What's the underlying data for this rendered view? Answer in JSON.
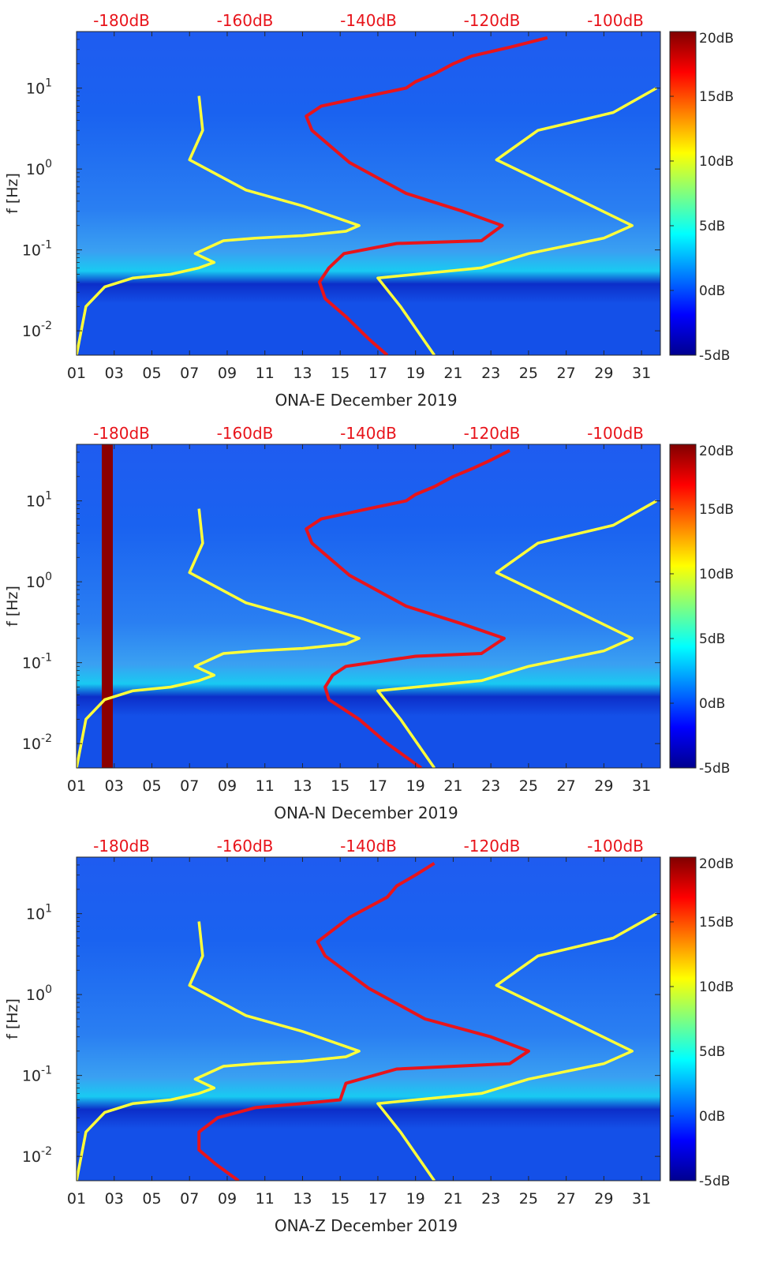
{
  "chart_data": [
    {
      "type": "heatmap",
      "title": "",
      "xlabel": "ONA-E December 2019",
      "ylabel": "f [Hz]",
      "x_ticks": [
        "01",
        "03",
        "05",
        "07",
        "09",
        "11",
        "13",
        "15",
        "17",
        "19",
        "21",
        "23",
        "25",
        "27",
        "29",
        "31"
      ],
      "y_ticks": [
        "10^-2",
        "10^-1",
        "10^0",
        "10^1"
      ],
      "xlim_days": [
        1,
        32
      ],
      "ylim_hz": [
        0.005,
        50
      ],
      "y_scale": "log",
      "colormap": "jet",
      "colorbar": {
        "ticks": [
          "20dB",
          "15dB",
          "10dB",
          "5dB",
          "0dB",
          "-5dB"
        ],
        "range_db": [
          -5,
          20
        ]
      },
      "top_axis": {
        "ticks": [
          "-180dB",
          "-160dB",
          "-140dB",
          "-120dB",
          "-100dB"
        ],
        "color": "#e8141b"
      },
      "series": [
        {
          "color": "#ffff3a",
          "role": "low noise model",
          "points": [
            [
              1,
              0.005
            ],
            [
              1.5,
              0.02
            ],
            [
              2.5,
              0.035
            ],
            [
              4,
              0.045
            ],
            [
              6,
              0.05
            ],
            [
              7.5,
              0.06
            ],
            [
              8.3,
              0.07
            ],
            [
              7.3,
              0.09
            ],
            [
              8.8,
              0.13
            ],
            [
              10.5,
              0.14
            ],
            [
              13,
              0.15
            ],
            [
              15.3,
              0.17
            ],
            [
              16,
              0.2
            ],
            [
              13,
              0.35
            ],
            [
              10,
              0.55
            ],
            [
              7,
              1.3
            ],
            [
              7.7,
              3
            ],
            [
              7.5,
              8
            ]
          ]
        },
        {
          "color": "#ffff3a",
          "role": "high noise model",
          "points": [
            [
              20,
              0.005
            ],
            [
              18.2,
              0.02
            ],
            [
              17,
              0.045
            ],
            [
              22.5,
              0.06
            ],
            [
              25,
              0.09
            ],
            [
              29,
              0.14
            ],
            [
              30.5,
              0.2
            ],
            [
              27,
              0.5
            ],
            [
              23.3,
              1.3
            ],
            [
              25.5,
              3
            ],
            [
              29.5,
              5
            ],
            [
              31.8,
              10
            ]
          ]
        },
        {
          "color": "#e8141b",
          "role": "median PSD",
          "points": [
            [
              17.5,
              0.005
            ],
            [
              16.5,
              0.008
            ],
            [
              15.3,
              0.015
            ],
            [
              14.2,
              0.025
            ],
            [
              13.9,
              0.04
            ],
            [
              14.4,
              0.06
            ],
            [
              15.2,
              0.09
            ],
            [
              18,
              0.12
            ],
            [
              22.5,
              0.13
            ],
            [
              23.6,
              0.2
            ],
            [
              21.5,
              0.3
            ],
            [
              18.5,
              0.5
            ],
            [
              15.5,
              1.2
            ],
            [
              13.5,
              3
            ],
            [
              13.2,
              4.5
            ],
            [
              14,
              6
            ],
            [
              16.5,
              8
            ],
            [
              18.5,
              10
            ],
            [
              19,
              12
            ],
            [
              20,
              15
            ],
            [
              21,
              20
            ],
            [
              22,
              25
            ],
            [
              24,
              32
            ],
            [
              26,
              42
            ]
          ]
        }
      ]
    },
    {
      "type": "heatmap",
      "title": "",
      "xlabel": "ONA-N December 2019",
      "ylabel": "f [Hz]",
      "x_ticks": [
        "01",
        "03",
        "05",
        "07",
        "09",
        "11",
        "13",
        "15",
        "17",
        "19",
        "21",
        "23",
        "25",
        "27",
        "29",
        "31"
      ],
      "y_ticks": [
        "10^-2",
        "10^-1",
        "10^0",
        "10^1"
      ],
      "xlim_days": [
        1,
        32
      ],
      "ylim_hz": [
        0.005,
        50
      ],
      "y_scale": "log",
      "colormap": "jet",
      "colorbar": {
        "ticks": [
          "20dB",
          "15dB",
          "10dB",
          "5dB",
          "0dB",
          "-5dB"
        ],
        "range_db": [
          -5,
          20
        ]
      },
      "top_axis": {
        "ticks": [
          "-180dB",
          "-160dB",
          "-140dB",
          "-120dB",
          "-100dB"
        ],
        "color": "#e8141b"
      },
      "series": [
        {
          "color": "#ffff3a",
          "role": "low noise model",
          "points": [
            [
              1,
              0.005
            ],
            [
              1.5,
              0.02
            ],
            [
              2.5,
              0.035
            ],
            [
              4,
              0.045
            ],
            [
              6,
              0.05
            ],
            [
              7.5,
              0.06
            ],
            [
              8.3,
              0.07
            ],
            [
              7.3,
              0.09
            ],
            [
              8.8,
              0.13
            ],
            [
              10.5,
              0.14
            ],
            [
              13,
              0.15
            ],
            [
              15.3,
              0.17
            ],
            [
              16,
              0.2
            ],
            [
              13,
              0.35
            ],
            [
              10,
              0.55
            ],
            [
              7,
              1.3
            ],
            [
              7.7,
              3
            ],
            [
              7.5,
              8
            ]
          ]
        },
        {
          "color": "#ffff3a",
          "role": "high noise model",
          "points": [
            [
              20,
              0.005
            ],
            [
              18.2,
              0.02
            ],
            [
              17,
              0.045
            ],
            [
              22.5,
              0.06
            ],
            [
              25,
              0.09
            ],
            [
              29,
              0.14
            ],
            [
              30.5,
              0.2
            ],
            [
              27,
              0.5
            ],
            [
              23.3,
              1.3
            ],
            [
              25.5,
              3
            ],
            [
              29.5,
              5
            ],
            [
              31.8,
              10
            ]
          ]
        },
        {
          "color": "#e8141b",
          "role": "median PSD",
          "points": [
            [
              19.3,
              0.005
            ],
            [
              17.5,
              0.01
            ],
            [
              16,
              0.02
            ],
            [
              14.4,
              0.035
            ],
            [
              14.2,
              0.05
            ],
            [
              14.6,
              0.07
            ],
            [
              15.3,
              0.09
            ],
            [
              19,
              0.12
            ],
            [
              22.5,
              0.13
            ],
            [
              23.7,
              0.2
            ],
            [
              21.5,
              0.3
            ],
            [
              18.5,
              0.5
            ],
            [
              15.5,
              1.2
            ],
            [
              13.5,
              3
            ],
            [
              13.2,
              4.5
            ],
            [
              14,
              6
            ],
            [
              16.5,
              8
            ],
            [
              18.5,
              10
            ],
            [
              19,
              12
            ],
            [
              20,
              15
            ],
            [
              21,
              20
            ],
            [
              22,
              25
            ],
            [
              23,
              32
            ],
            [
              24,
              42
            ]
          ]
        }
      ],
      "annotations": [
        "solid dark-red vertical band near Dec 02-03"
      ]
    },
    {
      "type": "heatmap",
      "title": "",
      "xlabel": "ONA-Z December 2019",
      "ylabel": "f [Hz]",
      "x_ticks": [
        "01",
        "03",
        "05",
        "07",
        "09",
        "11",
        "13",
        "15",
        "17",
        "19",
        "21",
        "23",
        "25",
        "27",
        "29",
        "31"
      ],
      "y_ticks": [
        "10^-2",
        "10^-1",
        "10^0",
        "10^1"
      ],
      "xlim_days": [
        1,
        32
      ],
      "ylim_hz": [
        0.005,
        50
      ],
      "y_scale": "log",
      "colormap": "jet",
      "colorbar": {
        "ticks": [
          "20dB",
          "15dB",
          "10dB",
          "5dB",
          "0dB",
          "-5dB"
        ],
        "range_db": [
          -5,
          20
        ]
      },
      "top_axis": {
        "ticks": [
          "-180dB",
          "-160dB",
          "-140dB",
          "-120dB",
          "-100dB"
        ],
        "color": "#e8141b"
      },
      "series": [
        {
          "color": "#ffff3a",
          "role": "low noise model",
          "points": [
            [
              1,
              0.005
            ],
            [
              1.5,
              0.02
            ],
            [
              2.5,
              0.035
            ],
            [
              4,
              0.045
            ],
            [
              6,
              0.05
            ],
            [
              7.5,
              0.06
            ],
            [
              8.3,
              0.07
            ],
            [
              7.3,
              0.09
            ],
            [
              8.8,
              0.13
            ],
            [
              10.5,
              0.14
            ],
            [
              13,
              0.15
            ],
            [
              15.3,
              0.17
            ],
            [
              16,
              0.2
            ],
            [
              13,
              0.35
            ],
            [
              10,
              0.55
            ],
            [
              7,
              1.3
            ],
            [
              7.7,
              3
            ],
            [
              7.5,
              8
            ]
          ]
        },
        {
          "color": "#ffff3a",
          "role": "high noise model",
          "points": [
            [
              20,
              0.005
            ],
            [
              18.2,
              0.02
            ],
            [
              17,
              0.045
            ],
            [
              22.5,
              0.06
            ],
            [
              25,
              0.09
            ],
            [
              29,
              0.14
            ],
            [
              30.5,
              0.2
            ],
            [
              27,
              0.5
            ],
            [
              23.3,
              1.3
            ],
            [
              25.5,
              3
            ],
            [
              29.5,
              5
            ],
            [
              31.8,
              10
            ]
          ]
        },
        {
          "color": "#e8141b",
          "role": "median PSD",
          "points": [
            [
              9.6,
              0.005
            ],
            [
              8.4,
              0.008
            ],
            [
              7.5,
              0.012
            ],
            [
              7.5,
              0.02
            ],
            [
              8.5,
              0.03
            ],
            [
              10.5,
              0.04
            ],
            [
              13,
              0.045
            ],
            [
              15,
              0.05
            ],
            [
              15.3,
              0.08
            ],
            [
              18,
              0.12
            ],
            [
              24,
              0.14
            ],
            [
              25,
              0.2
            ],
            [
              23,
              0.3
            ],
            [
              19.5,
              0.5
            ],
            [
              16.5,
              1.2
            ],
            [
              14.2,
              3
            ],
            [
              13.8,
              4.5
            ],
            [
              14.5,
              6
            ],
            [
              15.5,
              9
            ],
            [
              16.5,
              12
            ],
            [
              17.5,
              16
            ],
            [
              18,
              22
            ],
            [
              19,
              30
            ],
            [
              20,
              42
            ]
          ]
        }
      ]
    }
  ]
}
